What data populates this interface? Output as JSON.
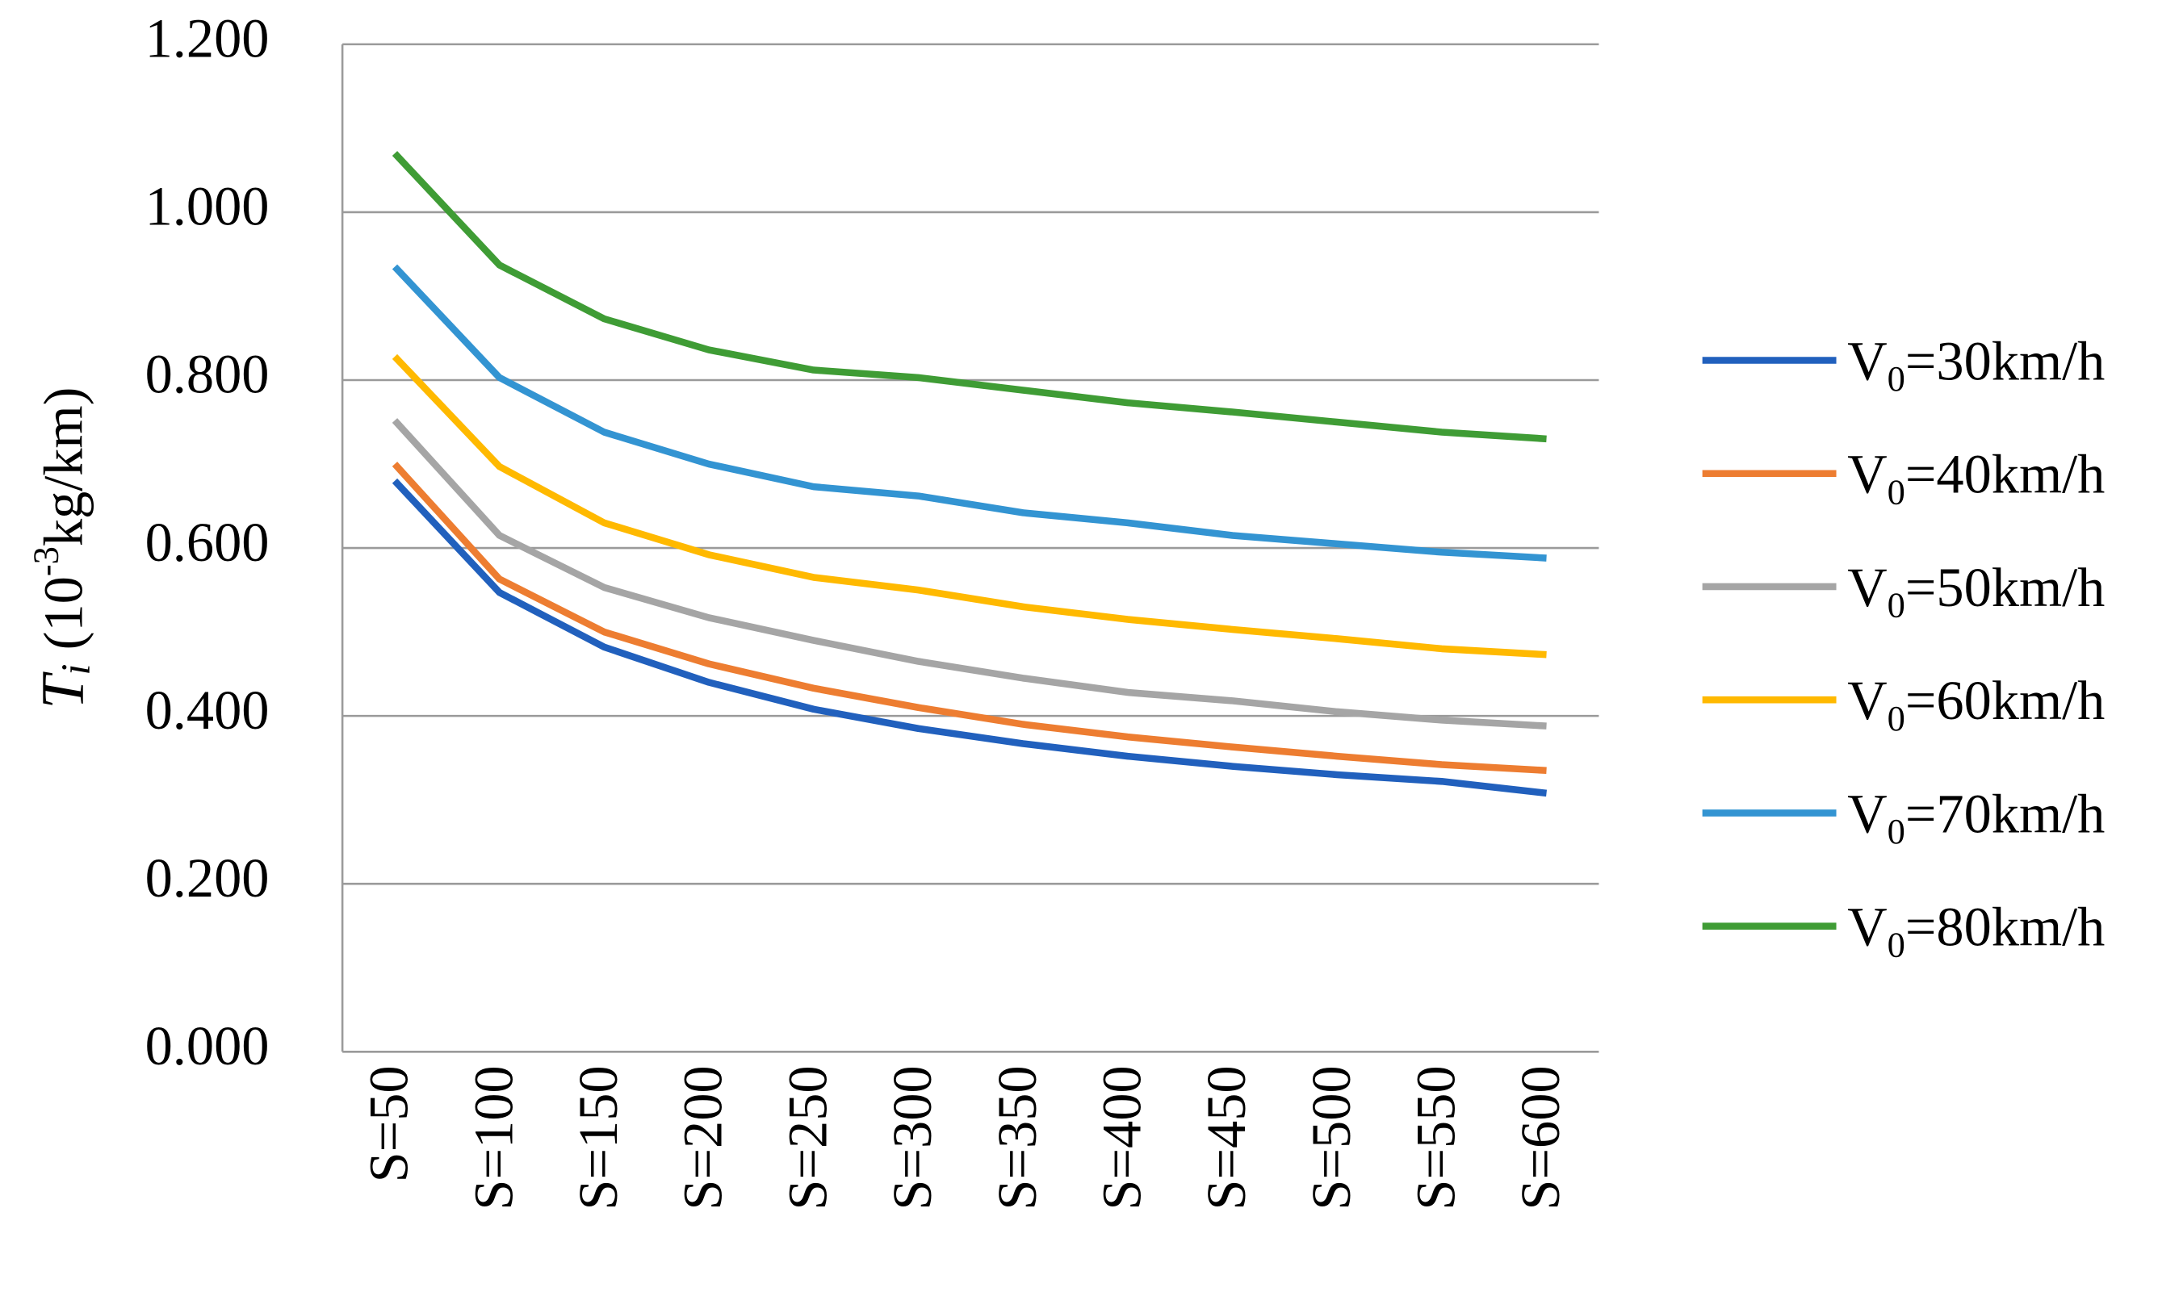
{
  "chart_data": {
    "type": "line",
    "ylabel": {
      "symbol": "T",
      "subscript": "i",
      "text": " (10",
      "superscript": "-3",
      "unit": "kg/km)"
    },
    "categories": [
      "S=50",
      "S=100",
      "S=150",
      "S=200",
      "S=250",
      "S=300",
      "S=350",
      "S=400",
      "S=450",
      "S=500",
      "S=550",
      "S=600"
    ],
    "series": [
      {
        "name": "V0=30km/h",
        "color": "#2160bd",
        "values": [
          0.68,
          0.547,
          0.482,
          0.44,
          0.408,
          0.385,
          0.367,
          0.352,
          0.34,
          0.33,
          0.322,
          0.308
        ]
      },
      {
        "name": "V0=40km/h",
        "color": "#ed7d31",
        "values": [
          0.7,
          0.563,
          0.5,
          0.462,
          0.433,
          0.41,
          0.39,
          0.375,
          0.363,
          0.352,
          0.342,
          0.335
        ]
      },
      {
        "name": "V0=50km/h",
        "color": "#a5a5a5",
        "values": [
          0.752,
          0.615,
          0.553,
          0.517,
          0.49,
          0.465,
          0.445,
          0.428,
          0.418,
          0.405,
          0.395,
          0.388
        ]
      },
      {
        "name": "V0=60km/h",
        "color": "#ffb900",
        "values": [
          0.828,
          0.697,
          0.63,
          0.592,
          0.565,
          0.55,
          0.53,
          0.515,
          0.503,
          0.492,
          0.48,
          0.473
        ]
      },
      {
        "name": "V0=70km/h",
        "color": "#3394d2",
        "values": [
          0.935,
          0.803,
          0.738,
          0.7,
          0.673,
          0.662,
          0.642,
          0.63,
          0.615,
          0.605,
          0.595,
          0.588
        ]
      },
      {
        "name": "V0=80km/h",
        "color": "#3f9c35",
        "values": [
          1.07,
          0.937,
          0.873,
          0.836,
          0.812,
          0.803,
          0.788,
          0.773,
          0.762,
          0.75,
          0.738,
          0.73
        ]
      }
    ],
    "ylim": [
      0,
      1.2
    ],
    "yticks": [
      {
        "value": 0,
        "label": "0.000"
      },
      {
        "value": 0.2,
        "label": "0.200"
      },
      {
        "value": 0.4,
        "label": "0.400"
      },
      {
        "value": 0.6,
        "label": "0.600"
      },
      {
        "value": 0.8,
        "label": "0.800"
      },
      {
        "value": 1.0,
        "label": "1.000"
      },
      {
        "value": 1.2,
        "label": "1.200"
      }
    ],
    "grid": true,
    "legend": "right"
  }
}
